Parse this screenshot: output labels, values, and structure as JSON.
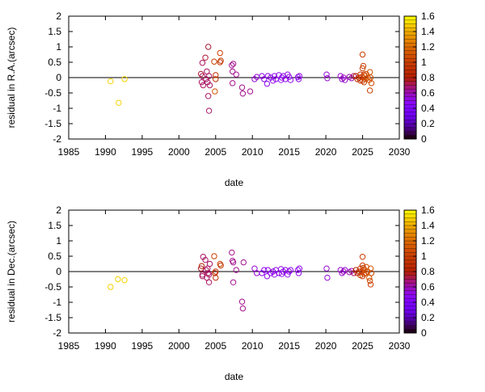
{
  "chart_data": [
    {
      "type": "scatter",
      "xlabel": "date",
      "ylabel": "residual in R.A.(arcsec)",
      "xlim": [
        1985,
        2030
      ],
      "ylim": [
        -2,
        2
      ],
      "xticks": [
        "1985",
        "1990",
        "1995",
        "2000",
        "2005",
        "2010",
        "2015",
        "2020",
        "2025",
        "2030"
      ],
      "yticks": [
        "2",
        "1.5",
        "1",
        "0.5",
        "0",
        "-0.5",
        "-1",
        "-1.5",
        "-2"
      ],
      "colorbar": {
        "range": [
          0,
          1.6
        ],
        "ticks": [
          "1.6",
          "1.4",
          "1.2",
          "1",
          "0.8",
          "0.6",
          "0.4",
          "0.2",
          "0"
        ],
        "palette": "gnuplot"
      },
      "points": [
        {
          "x": 1990.7,
          "y": -0.12,
          "c": 1.5
        },
        {
          "x": 1991.8,
          "y": -0.82,
          "c": 1.5
        },
        {
          "x": 1992.6,
          "y": -0.05,
          "c": 1.5
        },
        {
          "x": 2003.0,
          "y": 0.12,
          "c": 0.75
        },
        {
          "x": 2003.1,
          "y": -0.15,
          "c": 0.7
        },
        {
          "x": 2003.2,
          "y": 0.48,
          "c": 0.7
        },
        {
          "x": 2003.3,
          "y": -0.25,
          "c": 0.7
        },
        {
          "x": 2003.2,
          "y": 0.05,
          "c": 0.7
        },
        {
          "x": 2003.6,
          "y": 0.65,
          "c": 0.75
        },
        {
          "x": 2003.7,
          "y": -0.05,
          "c": 0.7
        },
        {
          "x": 2003.8,
          "y": 0.2,
          "c": 0.7
        },
        {
          "x": 2003.9,
          "y": -0.15,
          "c": 0.7
        },
        {
          "x": 2004.0,
          "y": 1.0,
          "c": 0.75
        },
        {
          "x": 2004.0,
          "y": -0.6,
          "c": 0.7
        },
        {
          "x": 2004.1,
          "y": -1.08,
          "c": 0.7
        },
        {
          "x": 2004.1,
          "y": 0.05,
          "c": 0.7
        },
        {
          "x": 2004.2,
          "y": -0.25,
          "c": 0.7
        },
        {
          "x": 2004.8,
          "y": 0.52,
          "c": 1.0
        },
        {
          "x": 2004.9,
          "y": -0.45,
          "c": 1.1
        },
        {
          "x": 2005.0,
          "y": 0.08,
          "c": 0.9
        },
        {
          "x": 2005.0,
          "y": -0.05,
          "c": 0.9
        },
        {
          "x": 2005.6,
          "y": 0.8,
          "c": 1.0
        },
        {
          "x": 2005.7,
          "y": 0.55,
          "c": 0.95
        },
        {
          "x": 2005.6,
          "y": 0.5,
          "c": 0.95
        },
        {
          "x": 2007.2,
          "y": 0.4,
          "c": 0.65
        },
        {
          "x": 2007.3,
          "y": 0.2,
          "c": 0.65
        },
        {
          "x": 2007.3,
          "y": -0.18,
          "c": 0.65
        },
        {
          "x": 2007.4,
          "y": 0.45,
          "c": 0.65
        },
        {
          "x": 2007.8,
          "y": 0.1,
          "c": 0.65
        },
        {
          "x": 2008.6,
          "y": -0.32,
          "c": 0.65
        },
        {
          "x": 2008.7,
          "y": -0.52,
          "c": 0.65
        },
        {
          "x": 2009.7,
          "y": -0.45,
          "c": 0.65
        },
        {
          "x": 2010.3,
          "y": -0.05,
          "c": 0.55
        },
        {
          "x": 2010.6,
          "y": 0.02,
          "c": 0.55
        },
        {
          "x": 2011.3,
          "y": 0.05,
          "c": 0.5
        },
        {
          "x": 2011.6,
          "y": -0.05,
          "c": 0.5
        },
        {
          "x": 2012.0,
          "y": -0.2,
          "c": 0.5
        },
        {
          "x": 2012.1,
          "y": 0.05,
          "c": 0.5
        },
        {
          "x": 2012.5,
          "y": 0.0,
          "c": 0.5
        },
        {
          "x": 2012.8,
          "y": -0.1,
          "c": 0.5
        },
        {
          "x": 2013.0,
          "y": 0.05,
          "c": 0.5
        },
        {
          "x": 2013.2,
          "y": -0.05,
          "c": 0.5
        },
        {
          "x": 2013.6,
          "y": 0.08,
          "c": 0.5
        },
        {
          "x": 2013.9,
          "y": -0.08,
          "c": 0.5
        },
        {
          "x": 2014.0,
          "y": 0.0,
          "c": 0.5
        },
        {
          "x": 2014.2,
          "y": 0.05,
          "c": 0.5
        },
        {
          "x": 2014.5,
          "y": -0.05,
          "c": 0.5
        },
        {
          "x": 2014.8,
          "y": 0.1,
          "c": 0.5
        },
        {
          "x": 2015.0,
          "y": 0.02,
          "c": 0.5
        },
        {
          "x": 2015.2,
          "y": -0.08,
          "c": 0.5
        },
        {
          "x": 2016.2,
          "y": 0.02,
          "c": 0.5
        },
        {
          "x": 2016.3,
          "y": -0.05,
          "c": 0.5
        },
        {
          "x": 2016.4,
          "y": 0.05,
          "c": 0.5
        },
        {
          "x": 2020.1,
          "y": 0.1,
          "c": 0.55
        },
        {
          "x": 2020.2,
          "y": -0.02,
          "c": 0.55
        },
        {
          "x": 2022.0,
          "y": 0.05,
          "c": 0.55
        },
        {
          "x": 2022.2,
          "y": -0.05,
          "c": 0.55
        },
        {
          "x": 2022.4,
          "y": 0.0,
          "c": 0.6
        },
        {
          "x": 2022.6,
          "y": -0.08,
          "c": 0.55
        },
        {
          "x": 2023.2,
          "y": 0.02,
          "c": 0.6
        },
        {
          "x": 2023.5,
          "y": -0.02,
          "c": 0.6
        },
        {
          "x": 2023.8,
          "y": 0.05,
          "c": 0.7
        },
        {
          "x": 2024.1,
          "y": 0.05,
          "c": 0.85
        },
        {
          "x": 2024.3,
          "y": -0.05,
          "c": 0.9
        },
        {
          "x": 2024.5,
          "y": 0.0,
          "c": 0.9
        },
        {
          "x": 2024.7,
          "y": 0.1,
          "c": 0.95
        },
        {
          "x": 2024.7,
          "y": -0.1,
          "c": 0.95
        },
        {
          "x": 2024.9,
          "y": 0.02,
          "c": 1.0
        },
        {
          "x": 2025.0,
          "y": 0.3,
          "c": 1.0
        },
        {
          "x": 2025.0,
          "y": 0.75,
          "c": 1.0
        },
        {
          "x": 2025.0,
          "y": -0.1,
          "c": 1.0
        },
        {
          "x": 2025.1,
          "y": 0.38,
          "c": 1.0
        },
        {
          "x": 2025.2,
          "y": 0.1,
          "c": 1.0
        },
        {
          "x": 2025.2,
          "y": -0.15,
          "c": 1.0
        },
        {
          "x": 2025.3,
          "y": 0.05,
          "c": 1.05
        },
        {
          "x": 2025.4,
          "y": -0.05,
          "c": 1.05
        },
        {
          "x": 2025.5,
          "y": 0.12,
          "c": 1.05
        },
        {
          "x": 2025.7,
          "y": 0.0,
          "c": 1.1
        },
        {
          "x": 2025.9,
          "y": -0.08,
          "c": 1.1
        },
        {
          "x": 2026.0,
          "y": 0.18,
          "c": 1.1
        },
        {
          "x": 2026.1,
          "y": 0.0,
          "c": 1.1
        },
        {
          "x": 2026.0,
          "y": -0.42,
          "c": 1.0
        },
        {
          "x": 2026.2,
          "y": -0.18,
          "c": 1.05
        }
      ]
    },
    {
      "type": "scatter",
      "xlabel": "date",
      "ylabel": "residual in Dec.(arcsec)",
      "xlim": [
        1985,
        2030
      ],
      "ylim": [
        -2,
        2
      ],
      "xticks": [
        "1985",
        "1990",
        "1995",
        "2000",
        "2005",
        "2010",
        "2015",
        "2020",
        "2025",
        "2030"
      ],
      "yticks": [
        "2",
        "1.5",
        "1",
        "0.5",
        "0",
        "-0.5",
        "-1",
        "-1.5",
        "-2"
      ],
      "colorbar": {
        "range": [
          0,
          1.6
        ],
        "ticks": [
          "1.6",
          "1.4",
          "1.2",
          "1",
          "0.8",
          "0.6",
          "0.4",
          "0.2",
          "0"
        ],
        "palette": "gnuplot"
      },
      "points": [
        {
          "x": 1990.7,
          "y": -0.5,
          "c": 1.5
        },
        {
          "x": 1991.7,
          "y": -0.25,
          "c": 1.5
        },
        {
          "x": 1992.6,
          "y": -0.28,
          "c": 1.5
        },
        {
          "x": 2003.0,
          "y": 0.1,
          "c": 0.75
        },
        {
          "x": 2003.1,
          "y": 0.18,
          "c": 0.8
        },
        {
          "x": 2003.2,
          "y": -0.1,
          "c": 0.7
        },
        {
          "x": 2003.3,
          "y": 0.48,
          "c": 0.7
        },
        {
          "x": 2003.2,
          "y": -0.15,
          "c": 0.7
        },
        {
          "x": 2003.6,
          "y": 0.38,
          "c": 0.7
        },
        {
          "x": 2003.7,
          "y": 0.05,
          "c": 0.7
        },
        {
          "x": 2003.8,
          "y": -0.2,
          "c": 0.7
        },
        {
          "x": 2003.9,
          "y": 0.1,
          "c": 0.7
        },
        {
          "x": 2004.0,
          "y": -0.05,
          "c": 0.7
        },
        {
          "x": 2004.1,
          "y": -0.35,
          "c": 0.7
        },
        {
          "x": 2004.2,
          "y": 0.25,
          "c": 0.7
        },
        {
          "x": 2004.1,
          "y": -0.1,
          "c": 0.7
        },
        {
          "x": 2004.8,
          "y": 0.5,
          "c": 1.0
        },
        {
          "x": 2004.9,
          "y": -0.05,
          "c": 0.9
        },
        {
          "x": 2005.0,
          "y": 0.0,
          "c": 0.9
        },
        {
          "x": 2005.0,
          "y": -0.2,
          "c": 0.9
        },
        {
          "x": 2005.6,
          "y": 0.25,
          "c": 1.0
        },
        {
          "x": 2005.7,
          "y": 0.2,
          "c": 0.95
        },
        {
          "x": 2007.2,
          "y": 0.62,
          "c": 0.65
        },
        {
          "x": 2007.3,
          "y": 0.35,
          "c": 0.65
        },
        {
          "x": 2007.4,
          "y": -0.35,
          "c": 0.65
        },
        {
          "x": 2007.4,
          "y": 0.3,
          "c": 0.65
        },
        {
          "x": 2007.8,
          "y": 0.05,
          "c": 0.65
        },
        {
          "x": 2008.6,
          "y": -0.98,
          "c": 0.65
        },
        {
          "x": 2008.7,
          "y": -1.2,
          "c": 0.65
        },
        {
          "x": 2008.8,
          "y": 0.3,
          "c": 0.65
        },
        {
          "x": 2010.3,
          "y": 0.1,
          "c": 0.55
        },
        {
          "x": 2010.6,
          "y": -0.05,
          "c": 0.55
        },
        {
          "x": 2011.3,
          "y": -0.05,
          "c": 0.5
        },
        {
          "x": 2011.6,
          "y": 0.05,
          "c": 0.5
        },
        {
          "x": 2012.0,
          "y": -0.15,
          "c": 0.5
        },
        {
          "x": 2012.1,
          "y": 0.05,
          "c": 0.5
        },
        {
          "x": 2012.5,
          "y": -0.05,
          "c": 0.5
        },
        {
          "x": 2012.8,
          "y": 0.0,
          "c": 0.5
        },
        {
          "x": 2013.0,
          "y": -0.1,
          "c": 0.5
        },
        {
          "x": 2013.2,
          "y": 0.05,
          "c": 0.5
        },
        {
          "x": 2013.6,
          "y": -0.05,
          "c": 0.5
        },
        {
          "x": 2013.9,
          "y": 0.08,
          "c": 0.5
        },
        {
          "x": 2014.0,
          "y": -0.08,
          "c": 0.5
        },
        {
          "x": 2014.2,
          "y": 0.0,
          "c": 0.5
        },
        {
          "x": 2014.5,
          "y": 0.05,
          "c": 0.5
        },
        {
          "x": 2014.8,
          "y": -0.1,
          "c": 0.5
        },
        {
          "x": 2015.0,
          "y": 0.0,
          "c": 0.5
        },
        {
          "x": 2015.2,
          "y": 0.05,
          "c": 0.5
        },
        {
          "x": 2016.2,
          "y": 0.05,
          "c": 0.5
        },
        {
          "x": 2016.3,
          "y": -0.05,
          "c": 0.5
        },
        {
          "x": 2016.4,
          "y": 0.1,
          "c": 0.5
        },
        {
          "x": 2020.1,
          "y": 0.1,
          "c": 0.55
        },
        {
          "x": 2020.2,
          "y": -0.2,
          "c": 0.55
        },
        {
          "x": 2022.0,
          "y": 0.05,
          "c": 0.55
        },
        {
          "x": 2022.2,
          "y": -0.05,
          "c": 0.55
        },
        {
          "x": 2022.4,
          "y": 0.0,
          "c": 0.6
        },
        {
          "x": 2022.6,
          "y": 0.05,
          "c": 0.55
        },
        {
          "x": 2023.2,
          "y": -0.02,
          "c": 0.6
        },
        {
          "x": 2023.5,
          "y": 0.02,
          "c": 0.6
        },
        {
          "x": 2023.8,
          "y": -0.05,
          "c": 0.7
        },
        {
          "x": 2024.1,
          "y": 0.05,
          "c": 0.85
        },
        {
          "x": 2024.3,
          "y": -0.05,
          "c": 0.9
        },
        {
          "x": 2024.5,
          "y": 0.0,
          "c": 0.9
        },
        {
          "x": 2024.7,
          "y": 0.1,
          "c": 0.95
        },
        {
          "x": 2024.7,
          "y": -0.12,
          "c": 0.95
        },
        {
          "x": 2024.9,
          "y": 0.0,
          "c": 1.0
        },
        {
          "x": 2025.0,
          "y": 0.48,
          "c": 1.0
        },
        {
          "x": 2025.0,
          "y": 0.2,
          "c": 1.0
        },
        {
          "x": 2025.0,
          "y": -0.15,
          "c": 1.0
        },
        {
          "x": 2025.1,
          "y": 0.12,
          "c": 1.0
        },
        {
          "x": 2025.2,
          "y": -0.08,
          "c": 1.0
        },
        {
          "x": 2025.3,
          "y": 0.05,
          "c": 1.05
        },
        {
          "x": 2025.4,
          "y": -0.05,
          "c": 1.05
        },
        {
          "x": 2025.5,
          "y": 0.15,
          "c": 1.05
        },
        {
          "x": 2025.7,
          "y": 0.0,
          "c": 1.1
        },
        {
          "x": 2025.9,
          "y": -0.2,
          "c": 1.1
        },
        {
          "x": 2026.0,
          "y": -0.3,
          "c": 1.05
        },
        {
          "x": 2026.1,
          "y": -0.42,
          "c": 1.0
        },
        {
          "x": 2026.1,
          "y": 0.1,
          "c": 1.1
        },
        {
          "x": 2026.2,
          "y": -0.05,
          "c": 1.05
        }
      ]
    }
  ]
}
